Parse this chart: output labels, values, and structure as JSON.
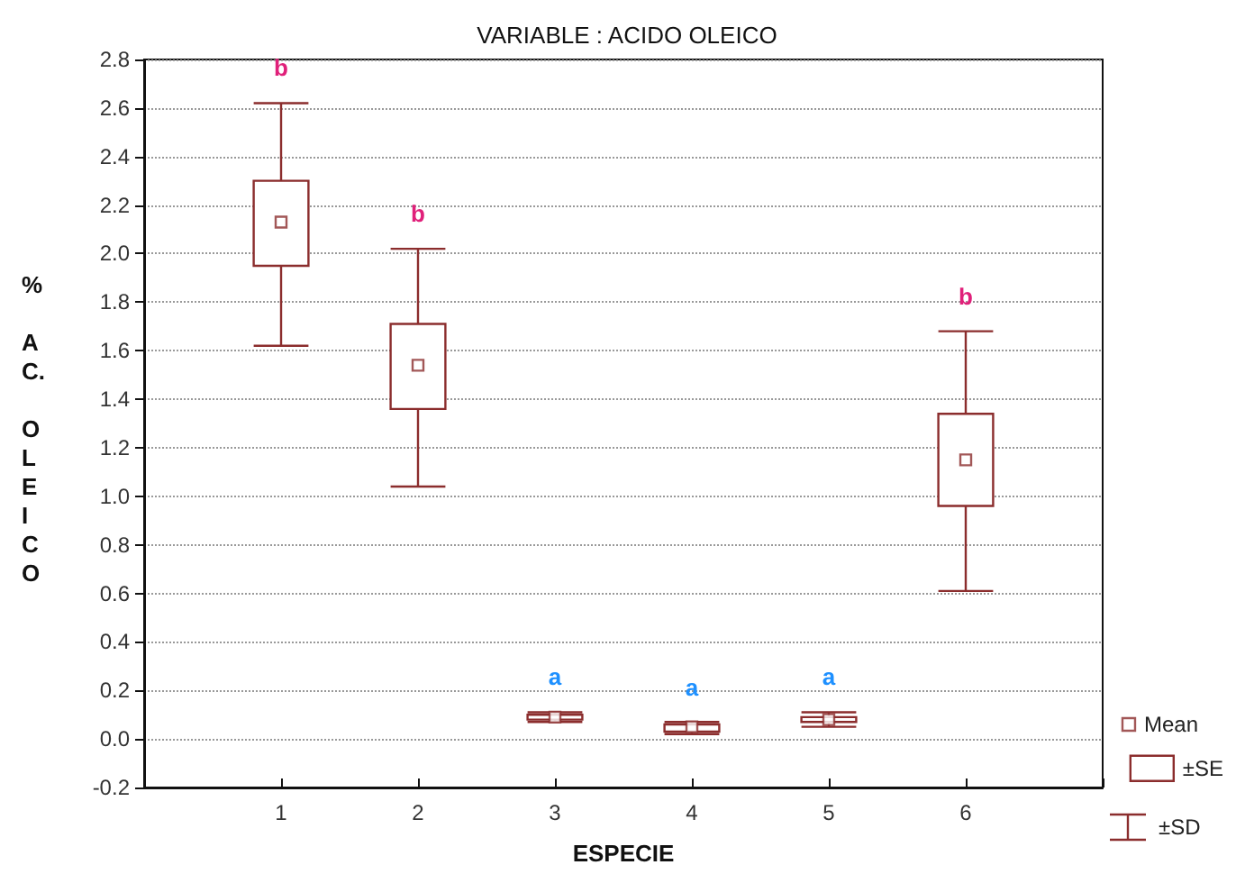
{
  "chart_data": {
    "type": "box",
    "title": "VARIABLE : ACIDO OLEICO",
    "xlabel": "ESPECIE",
    "ylabel": "% AC. OLEICO",
    "categories": [
      null,
      "1",
      "2",
      "3",
      "4",
      "5",
      "6",
      null
    ],
    "series": [
      {
        "name": "Mean",
        "type": "scatter",
        "marker": "square",
        "color": "#8b2d2d",
        "x": [
          "1",
          "2",
          "3",
          "4",
          "5",
          "6"
        ],
        "values": [
          2.13,
          1.54,
          0.09,
          0.05,
          0.08,
          1.15
        ]
      },
      {
        "name": "±SE",
        "color": "#8b2d2d",
        "boxes": [
          null,
          {
            "low": 1.62,
            "q1": 1.95,
            "q3": 2.3,
            "high": 2.62
          },
          {
            "low": 1.04,
            "q1": 1.36,
            "q3": 1.71,
            "high": 2.02
          },
          {
            "low": 0.07,
            "q1": 0.08,
            "q3": 0.1,
            "high": 0.11
          },
          {
            "low": 0.02,
            "q1": 0.03,
            "q3": 0.06,
            "high": 0.07
          },
          {
            "low": 0.05,
            "q1": 0.07,
            "q3": 0.09,
            "high": 0.11
          },
          {
            "low": 0.61,
            "q1": 0.96,
            "q3": 1.34,
            "high": 1.68
          },
          null
        ]
      }
    ],
    "annotations": [
      "b",
      "b",
      "a",
      "a",
      "a",
      "b",
      "±SD"
    ],
    "ylim": [
      -0.2,
      2.8
    ],
    "yticks": [
      {
        "value": -0.2,
        "label": "-0.2"
      },
      {
        "value": 0,
        "label": "0.0"
      },
      {
        "value": 0.2,
        "label": "0.2"
      },
      {
        "value": 0.4,
        "label": "0.4"
      },
      {
        "value": 0.6,
        "label": "0.6"
      },
      {
        "value": 0.8,
        "label": "0.8"
      },
      {
        "value": 1,
        "label": "1.0"
      },
      {
        "value": 1.2,
        "label": "1.2"
      },
      {
        "value": 1.4,
        "label": "1.4"
      },
      {
        "value": 1.6,
        "label": "1.6"
      },
      {
        "value": 1.8,
        "label": "1.8"
      },
      {
        "value": 2,
        "label": "2.0"
      },
      {
        "value": 2.2,
        "label": "2.2"
      },
      {
        "value": 2.4,
        "label": "2.4"
      },
      {
        "value": 2.6,
        "label": "2.6"
      },
      {
        "value": 2.8,
        "label": "2.8"
      }
    ],
    "grid": "y",
    "legend": "bottom right"
  }
}
